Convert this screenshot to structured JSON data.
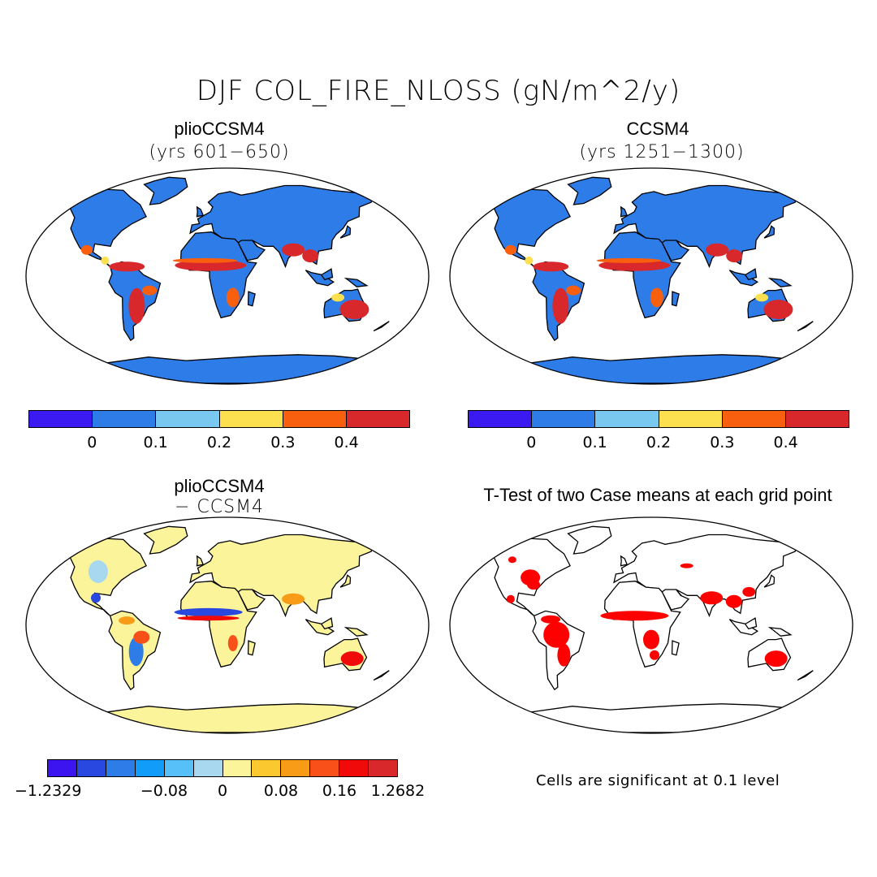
{
  "title": "DJF COL_FIRE_NLOSS (gN/m^2/y)",
  "panels": [
    {
      "title": "plioCCSM4",
      "subtitle": "(yrs 601−650)"
    },
    {
      "title": "CCSM4",
      "subtitle": "(yrs 1251−1300)"
    },
    {
      "title": "plioCCSM4",
      "subtitle": "− CCSM4"
    },
    {
      "title": "T-Test of two Case means at each grid point",
      "subtitle": ""
    }
  ],
  "colorbar_abs": {
    "colors": [
      "#3a1af0",
      "#2e7ce8",
      "#78c8f0",
      "#fce050",
      "#f86010",
      "#d8282c"
    ],
    "tick_labels": [
      "0",
      "0.1",
      "0.2",
      "0.3",
      "0.4"
    ]
  },
  "colorbar_diff": {
    "colors": [
      "#3c14f0",
      "#2848e0",
      "#2e7ce8",
      "#109cf8",
      "#58c0f8",
      "#a8d8f0",
      "#fcf49a",
      "#fcc830",
      "#f89c18",
      "#f85018",
      "#f00a0a",
      "#d8282c"
    ],
    "tick_labels": [
      "−1.2329",
      "−0.08",
      "0",
      "0.08",
      "0.16",
      "1.2682"
    ]
  },
  "significance_note": "Cells are significant at 0.1 level",
  "colors": {
    "land_abs": "#2e7ce8",
    "land_diff": "#fcf49a",
    "significant": "#ff0000",
    "hot": "#d8282c",
    "warm": "#f86010",
    "mild": "#fce050"
  }
}
